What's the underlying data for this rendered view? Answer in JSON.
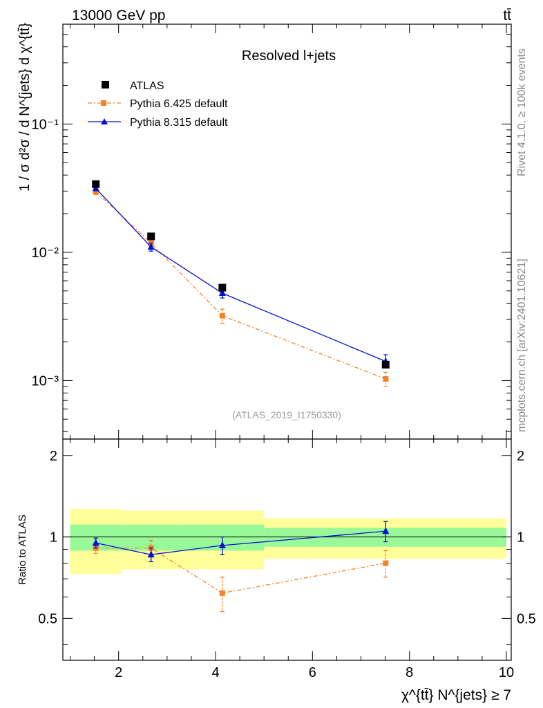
{
  "header": {
    "left": "13000 GeV pp",
    "right": "tt̄"
  },
  "side_labels": {
    "rivet": "Rivet 4.1.0, ≥ 100k events",
    "mcplots": "mcplots.cern.ch [arXiv:2401.10621]"
  },
  "chart_data": [
    {
      "type": "line",
      "title": "Resolved l+jets",
      "watermark": "(ATLAS_2019_I1750330)",
      "ylabel": "1 / σ d²σ / d N^{jets} d χ^{tt̄}",
      "yscale": "log",
      "ylim": [
        0.00035,
        0.6
      ],
      "ytick_labels": [
        "10⁻³",
        "10⁻²",
        "10⁻¹"
      ],
      "legend": {
        "position": "top-left",
        "entries": [
          "ATLAS",
          "Pythia 6.425 default",
          "Pythia 8.315 default"
        ]
      },
      "series": [
        {
          "name": "ATLAS",
          "color": "#000000",
          "marker": "square",
          "x": [
            1.53,
            2.67,
            4.14,
            7.51
          ],
          "y": [
            0.034,
            0.0133,
            0.0053,
            0.00133
          ]
        },
        {
          "name": "Pythia 6.425 default",
          "color": "#f58026",
          "marker": "square",
          "style": "dashdot",
          "x": [
            1.53,
            2.67,
            4.14,
            7.51
          ],
          "y": [
            0.0297,
            0.0118,
            0.0032,
            0.00103
          ],
          "err_lo": [
            0.0015,
            0.0008,
            0.0004,
            0.00013
          ],
          "err_hi": [
            0.0015,
            0.0008,
            0.0004,
            0.00013
          ]
        },
        {
          "name": "Pythia 8.315 default",
          "color": "#0010d0",
          "marker": "triangle",
          "style": "solid",
          "x": [
            1.53,
            2.67,
            4.14,
            7.51
          ],
          "y": [
            0.0315,
            0.011,
            0.0048,
            0.00141
          ],
          "err_lo": [
            0.0013,
            0.0008,
            0.0004,
            0.00013
          ],
          "err_hi": [
            0.0013,
            0.0008,
            0.0004,
            0.00018
          ]
        }
      ]
    },
    {
      "type": "line",
      "ylabel": "Ratio to ATLAS",
      "xlabel": "χ^{tt̄} N^{jets} ≥ 7",
      "xlim": [
        0.85,
        10.1
      ],
      "ylim": [
        0.35,
        2.3
      ],
      "xticks": [
        2,
        4,
        6,
        8,
        10
      ],
      "yticks": [
        0.5,
        1,
        2
      ],
      "ytick_labels": [
        "0.5",
        "1",
        "2"
      ],
      "bands": [
        {
          "x0": 1.0,
          "x1": 2.05,
          "inner": [
            0.89,
            1.11
          ],
          "outer": [
            0.73,
            1.27
          ]
        },
        {
          "x0": 2.05,
          "x1": 3.3,
          "inner": [
            0.89,
            1.11
          ],
          "outer": [
            0.76,
            1.25
          ]
        },
        {
          "x0": 3.3,
          "x1": 5.0,
          "inner": [
            0.89,
            1.11
          ],
          "outer": [
            0.76,
            1.25
          ]
        },
        {
          "x0": 5.0,
          "x1": 10.0,
          "inner": [
            0.92,
            1.08
          ],
          "outer": [
            0.83,
            1.17
          ]
        }
      ],
      "band_colors": {
        "inner": "#99f999",
        "outer": "#ffff99"
      },
      "series": [
        {
          "name": "Pythia 6.425 default",
          "color": "#f58026",
          "marker": "square",
          "style": "dashdot",
          "x": [
            1.53,
            2.67,
            4.14,
            7.51
          ],
          "y": [
            0.91,
            0.91,
            0.62,
            0.8
          ],
          "err_lo": [
            0.04,
            0.06,
            0.09,
            0.09
          ],
          "err_hi": [
            0.04,
            0.06,
            0.09,
            0.09
          ]
        },
        {
          "name": "Pythia 8.315 default",
          "color": "#0010d0",
          "marker": "triangle",
          "style": "solid",
          "x": [
            1.53,
            2.67,
            4.14,
            7.51
          ],
          "y": [
            0.95,
            0.86,
            0.93,
            1.05
          ],
          "err_lo": [
            0.04,
            0.05,
            0.07,
            0.09
          ],
          "err_hi": [
            0.04,
            0.05,
            0.07,
            0.09
          ]
        }
      ]
    }
  ]
}
